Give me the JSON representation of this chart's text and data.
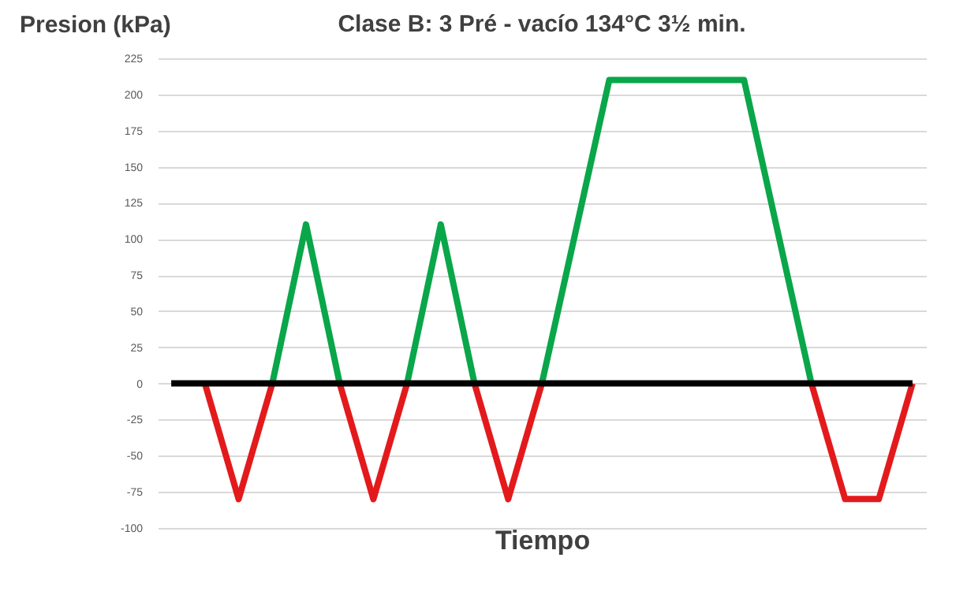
{
  "chart_data": {
    "type": "line",
    "title": "Clase B: 3 Pré - vacío 134°C 3½ min.",
    "ylabel": "Presion (kPa)",
    "xlabel": "Tiempo",
    "categories": [
      null,
      null,
      null,
      null,
      null,
      null,
      null,
      null,
      null,
      null,
      null,
      null,
      null,
      null,
      null,
      null,
      null,
      null,
      null,
      null,
      null,
      null,
      null
    ],
    "ylim": [
      -100,
      225
    ],
    "yticks": [
      -100,
      -75,
      -50,
      -25,
      0,
      25,
      50,
      75,
      100,
      125,
      150,
      175,
      200,
      225
    ],
    "tick_labels": "y",
    "grid": "y",
    "marker": "none",
    "line_style": "solid",
    "series": [
      {
        "color": "#e31a1c",
        "values": [
          null,
          0,
          -80,
          0,
          null,
          0,
          -80,
          0,
          null,
          0,
          -80,
          0,
          null,
          null,
          null,
          null,
          null,
          null,
          null,
          0,
          -80,
          -80,
          0
        ]
      },
      {
        "color": "#0aa64a",
        "values": [
          null,
          null,
          null,
          0,
          110,
          0,
          null,
          0,
          110,
          0,
          null,
          0,
          105,
          210,
          210,
          210,
          210,
          210,
          105,
          0,
          null,
          null,
          null
        ]
      },
      {
        "color": "#000000",
        "values": [
          0,
          0,
          0,
          0,
          0,
          0,
          0,
          0,
          0,
          0,
          0,
          0,
          0,
          0,
          0,
          0,
          0,
          0,
          0,
          0,
          0,
          0,
          0
        ]
      }
    ]
  }
}
